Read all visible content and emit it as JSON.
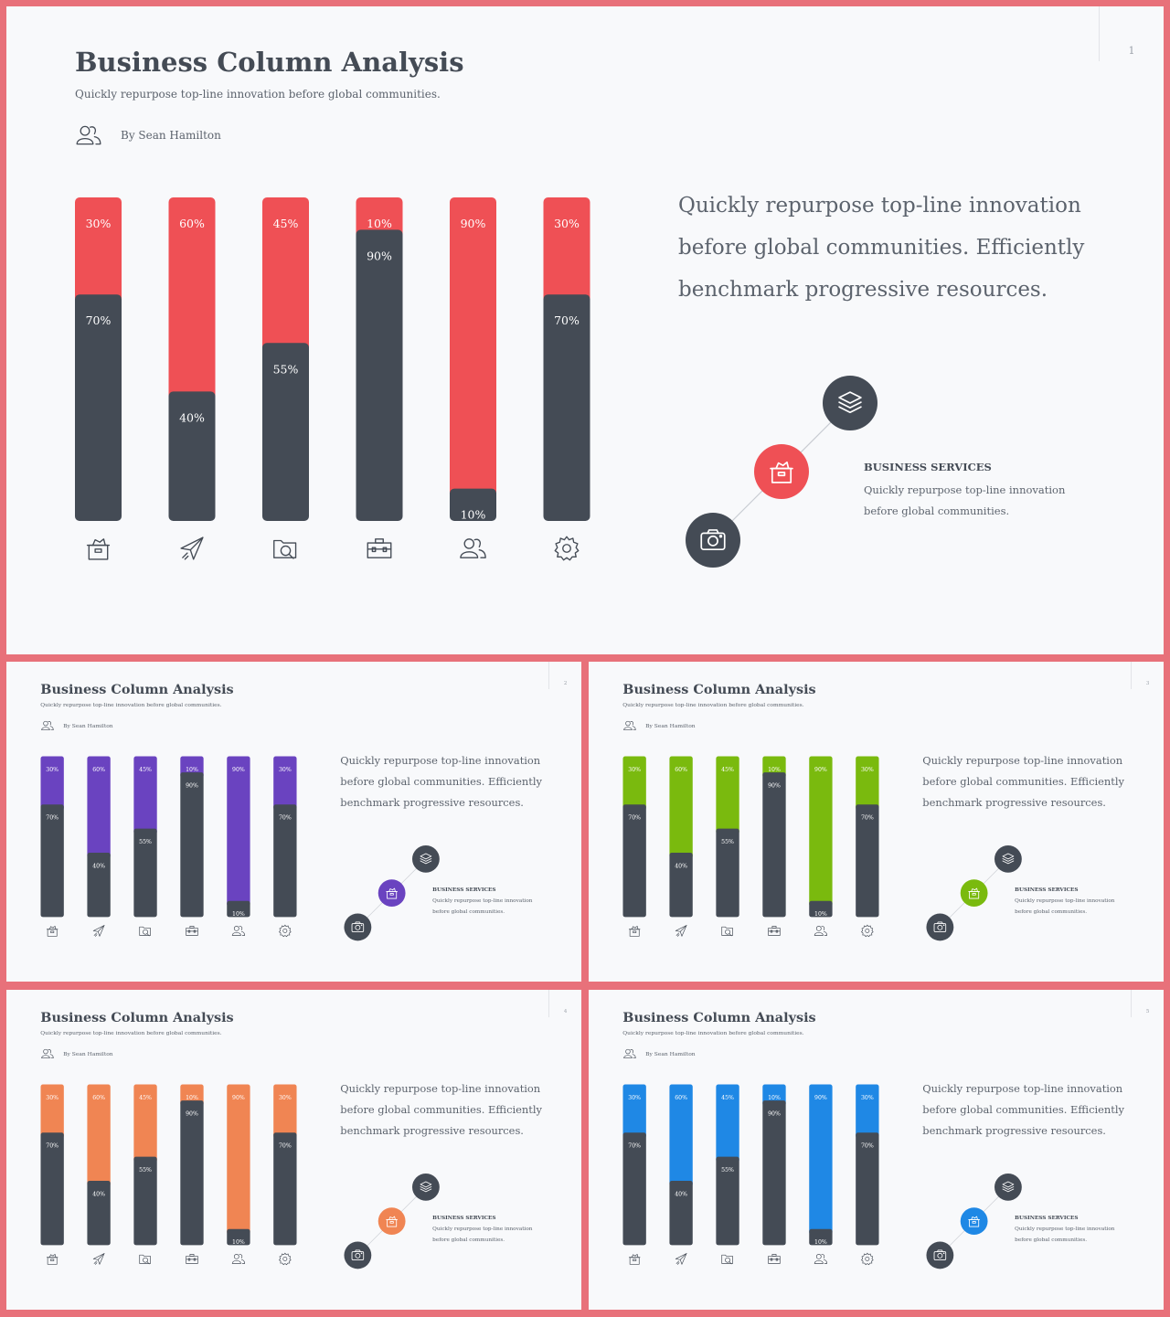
{
  "common": {
    "title": "Business Column Analysis",
    "subtitle": "Quickly repurpose top-line innovation before global communities.",
    "author": "By Sean Hamilton",
    "quote": "Quickly repurpose top-line innovation before global communities. Efficiently benchmark progressive resources.",
    "service_title": "BUSINESS SERVICES",
    "service_text": "Quickly repurpose top-line innovation before global communities.",
    "dark_color": "#444b55",
    "icon_names": [
      "basket-icon",
      "paper-plane-icon",
      "camera-folder-icon",
      "toolbox-icon",
      "users-icon",
      "gear-icon"
    ]
  },
  "slides": [
    {
      "page": "1",
      "accent": "#ef5055"
    },
    {
      "page": "2",
      "accent": "#6a43c0"
    },
    {
      "page": "3",
      "accent": "#7aba0e"
    },
    {
      "page": "4",
      "accent": "#f08553"
    },
    {
      "page": "5",
      "accent": "#1f88e5"
    }
  ],
  "chart_data": {
    "type": "bar",
    "stacked": true,
    "categories": [
      "",
      "",
      "",
      "",
      "",
      ""
    ],
    "series": [
      {
        "values": [
          70,
          40,
          55,
          90,
          10,
          70
        ],
        "labels": [
          "70%",
          "40%",
          "55%",
          "90%",
          "10%",
          "70%"
        ]
      },
      {
        "values": [
          30,
          60,
          45,
          10,
          90,
          30
        ],
        "labels": [
          "30%",
          "60%",
          "45%",
          "10%",
          "90%",
          "30%"
        ]
      }
    ],
    "ylim": [
      0,
      100
    ],
    "legend": "none",
    "grid": false
  }
}
